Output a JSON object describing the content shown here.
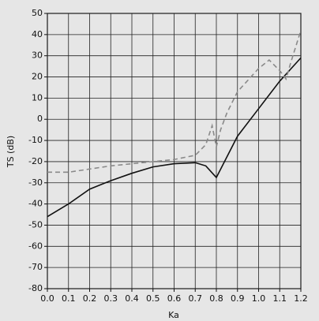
{
  "chart_data": {
    "type": "line",
    "xlabel": "Ka",
    "ylabel": "TS (dB)",
    "xlim": [
      0,
      1.2
    ],
    "ylim": [
      -80,
      50
    ],
    "xticks": [
      {
        "value": 0,
        "label": "0.0"
      },
      0.1,
      0.2,
      0.3,
      0.4,
      0.5,
      0.6,
      0.7,
      0.8,
      0.9,
      {
        "value": 1,
        "label": "1.0"
      },
      1.1,
      1.2
    ],
    "yticks": [
      50,
      40,
      30,
      20,
      10,
      0,
      -10,
      -20,
      -30,
      -40,
      -50,
      -60,
      -70,
      -80
    ],
    "grid": true,
    "series": [
      {
        "color": "#111111",
        "dash": "solid",
        "x": [
          0,
          0.1,
          0.2,
          0.3,
          0.4,
          0.5,
          0.6,
          0.7,
          0.75,
          0.8,
          0.9,
          1.0,
          1.1,
          1.2
        ],
        "values": [
          -46,
          -40,
          -33,
          -29,
          -25.5,
          -22.5,
          -21,
          -20.5,
          -22,
          -27.5,
          -8,
          5,
          18,
          29
        ]
      },
      {
        "color": "#8a8a8a",
        "dash": "dashed",
        "x": [
          0,
          0.1,
          0.2,
          0.3,
          0.4,
          0.5,
          0.6,
          0.7,
          0.75,
          0.78,
          0.8,
          0.82,
          0.85,
          0.9,
          1.0,
          1.05,
          1.1,
          1.13,
          1.15,
          1.2
        ],
        "values": [
          -25,
          -25,
          -23.5,
          -22,
          -21,
          -20,
          -19,
          -17,
          -12,
          -3,
          -13,
          -5,
          3,
          13,
          24,
          28,
          23,
          19,
          26,
          42
        ]
      }
    ]
  }
}
